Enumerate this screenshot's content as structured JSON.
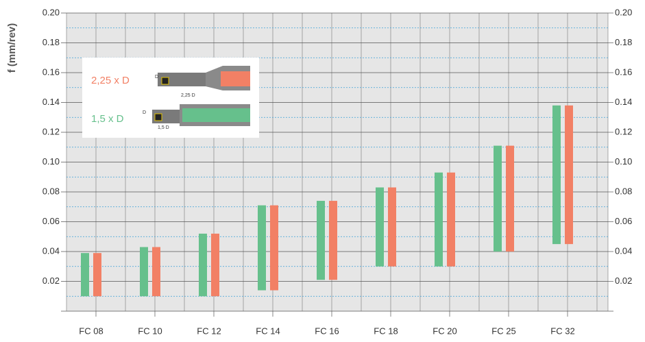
{
  "chart_data": {
    "type": "range-bar",
    "y_label": "f (mm/rev)",
    "categories": [
      "FC 08",
      "FC 10",
      "FC 12",
      "FC 14",
      "FC 16",
      "FC 18",
      "FC 20",
      "FC 25",
      "FC 32"
    ],
    "series": [
      {
        "name": "1,5 x D",
        "color": "#66c08c",
        "values": [
          [
            0.01,
            0.039
          ],
          [
            0.01,
            0.043
          ],
          [
            0.01,
            0.052
          ],
          [
            0.014,
            0.071
          ],
          [
            0.021,
            0.074
          ],
          [
            0.03,
            0.083
          ],
          [
            0.03,
            0.093
          ],
          [
            0.04,
            0.111
          ],
          [
            0.045,
            0.138
          ]
        ]
      },
      {
        "name": "2,25 x D",
        "color": "#f28065",
        "values": [
          [
            0.01,
            0.039
          ],
          [
            0.01,
            0.043
          ],
          [
            0.01,
            0.052
          ],
          [
            0.014,
            0.071
          ],
          [
            0.021,
            0.074
          ],
          [
            0.03,
            0.083
          ],
          [
            0.03,
            0.093
          ],
          [
            0.04,
            0.111
          ],
          [
            0.045,
            0.138
          ]
        ]
      }
    ],
    "ylim": [
      0,
      0.2
    ],
    "yticks": [
      0.02,
      0.04,
      0.06,
      0.08,
      {
        "value": 0.1,
        "label": "0.10"
      },
      0.12,
      0.14,
      0.16,
      0.18,
      {
        "value": 0.2,
        "label": "0.20"
      }
    ],
    "y2lim": [
      0,
      0.2
    ],
    "y2ticks": [
      0.02,
      0.04,
      0.06,
      0.08,
      {
        "value": 0.1,
        "label": "0.10"
      },
      0.12,
      0.14,
      0.16,
      0.18,
      {
        "value": 0.2,
        "label": "0.20"
      }
    ],
    "minor_yticks": [
      0.01,
      0.03,
      0.05,
      0.07,
      0.09,
      0.11,
      0.13,
      0.15,
      0.17,
      0.19
    ],
    "grid": true,
    "annotations": [
      "2,25 D",
      "1,5 D",
      "D",
      "D"
    ]
  }
}
